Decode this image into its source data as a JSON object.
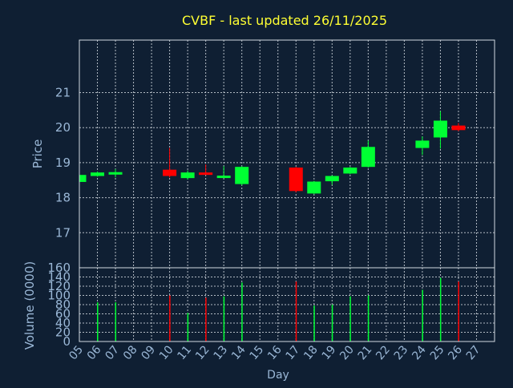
{
  "colors": {
    "background": "#0f1f33",
    "title": "#ffff33",
    "axis_text": "#9ab7d6",
    "frame": "#d0d8e0",
    "grid": "#cfd6dd",
    "up": "#00ff33",
    "down": "#ff0000"
  },
  "chart_data": [
    {
      "type": "candlestick",
      "title": "CVBF - last updated 26/11/2025",
      "ylabel": "Price",
      "ylim": [
        16,
        22.5
      ],
      "yticks": [
        "17",
        "18",
        "19",
        "20",
        "21"
      ],
      "grid": true,
      "candles": [
        {
          "day": 5,
          "open": 18.45,
          "close": 18.65,
          "high": 18.65,
          "low": 18.45
        },
        {
          "day": 6,
          "open": 18.62,
          "close": 18.72,
          "high": 18.75,
          "low": 18.6
        },
        {
          "day": 7,
          "open": 18.66,
          "close": 18.73,
          "high": 18.82,
          "low": 18.58
        },
        {
          "day": 10,
          "open": 18.8,
          "close": 18.62,
          "high": 19.42,
          "low": 18.58
        },
        {
          "day": 11,
          "open": 18.56,
          "close": 18.72,
          "high": 18.78,
          "low": 18.52
        },
        {
          "day": 12,
          "open": 18.72,
          "close": 18.67,
          "high": 18.95,
          "low": 18.65
        },
        {
          "day": 13,
          "open": 18.59,
          "close": 18.63,
          "high": 18.9,
          "low": 18.58
        },
        {
          "day": 14,
          "open": 18.39,
          "close": 18.88,
          "high": 18.9,
          "low": 18.35
        },
        {
          "day": 17,
          "open": 18.86,
          "close": 18.19,
          "high": 18.88,
          "low": 18.15
        },
        {
          "day": 18,
          "open": 18.12,
          "close": 18.46,
          "high": 18.48,
          "low": 18.1
        },
        {
          "day": 19,
          "open": 18.47,
          "close": 18.62,
          "high": 18.64,
          "low": 18.37
        },
        {
          "day": 20,
          "open": 18.69,
          "close": 18.86,
          "high": 18.88,
          "low": 18.67
        },
        {
          "day": 21,
          "open": 18.88,
          "close": 19.45,
          "high": 19.63,
          "low": 18.86
        },
        {
          "day": 24,
          "open": 19.42,
          "close": 19.63,
          "high": 19.75,
          "low": 19.22
        },
        {
          "day": 25,
          "open": 19.72,
          "close": 20.2,
          "high": 20.47,
          "low": 19.4
        },
        {
          "day": 26,
          "open": 20.06,
          "close": 19.93,
          "high": 20.13,
          "low": 19.9
        }
      ]
    },
    {
      "type": "bar",
      "ylabel": "Volume (0000)",
      "xlabel": "Day",
      "ylim": [
        0,
        160
      ],
      "yticks": [
        "0",
        "20",
        "40",
        "60",
        "80",
        "100",
        "120",
        "140",
        "160"
      ],
      "categories": [
        "05",
        "06",
        "07",
        "08",
        "09",
        "10",
        "11",
        "12",
        "13",
        "14",
        "15",
        "16",
        "17",
        "18",
        "19",
        "20",
        "21",
        "22",
        "23",
        "24",
        "25",
        "26",
        "27"
      ],
      "grid": true,
      "bars": [
        {
          "day": 6,
          "value": 85,
          "direction": "up"
        },
        {
          "day": 7,
          "value": 85,
          "direction": "up"
        },
        {
          "day": 10,
          "value": 100,
          "direction": "down"
        },
        {
          "day": 11,
          "value": 62,
          "direction": "up"
        },
        {
          "day": 12,
          "value": 95,
          "direction": "down"
        },
        {
          "day": 13,
          "value": 98,
          "direction": "up"
        },
        {
          "day": 14,
          "value": 128,
          "direction": "up"
        },
        {
          "day": 17,
          "value": 130,
          "direction": "down"
        },
        {
          "day": 18,
          "value": 78,
          "direction": "up"
        },
        {
          "day": 19,
          "value": 80,
          "direction": "up"
        },
        {
          "day": 20,
          "value": 98,
          "direction": "up"
        },
        {
          "day": 21,
          "value": 100,
          "direction": "up"
        },
        {
          "day": 24,
          "value": 112,
          "direction": "up"
        },
        {
          "day": 25,
          "value": 138,
          "direction": "up"
        },
        {
          "day": 26,
          "value": 130,
          "direction": "down"
        }
      ]
    }
  ]
}
